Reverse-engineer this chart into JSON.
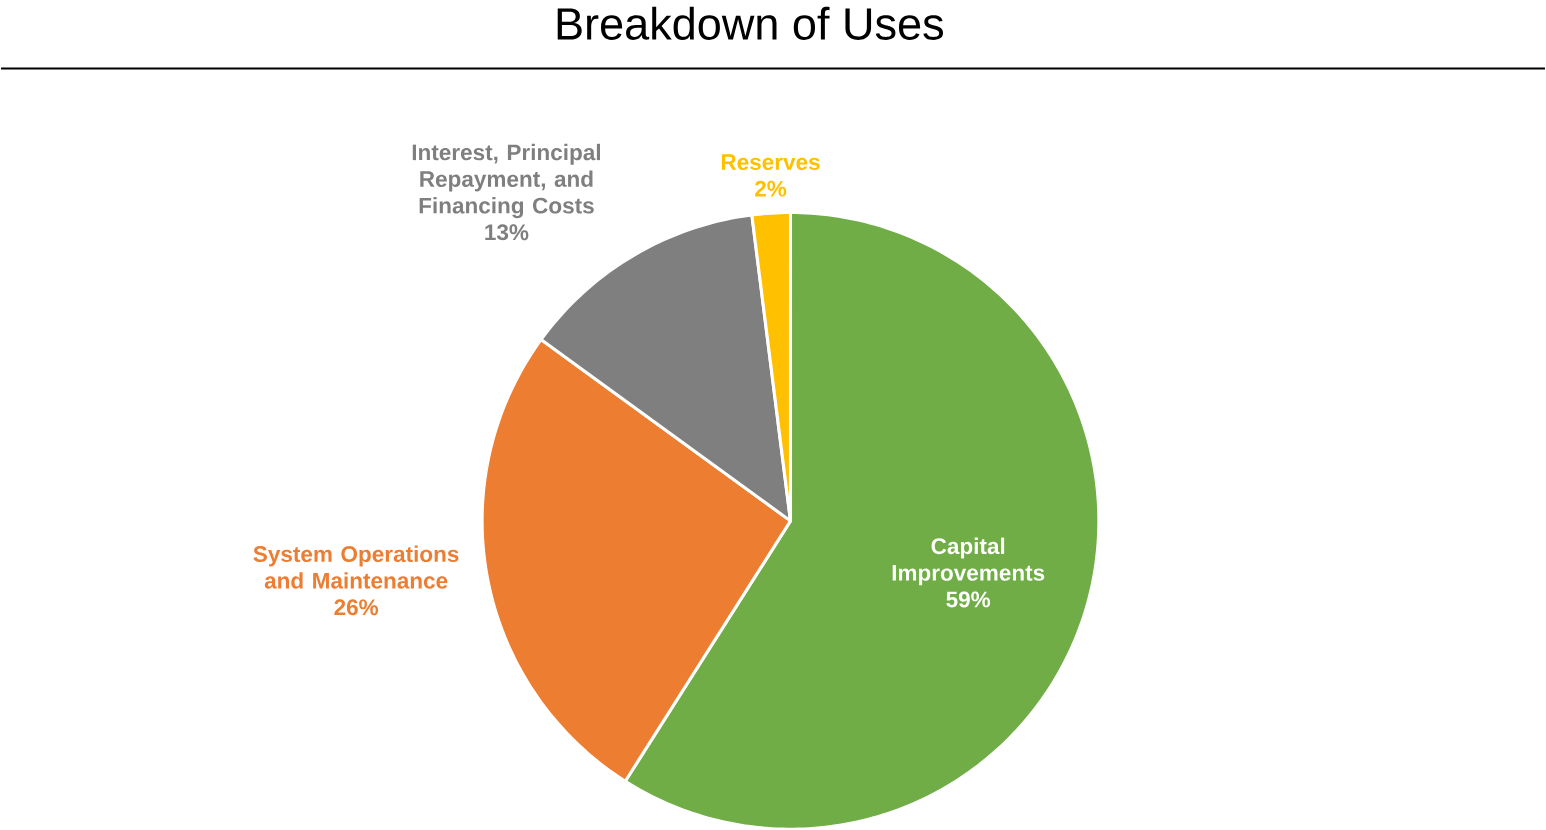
{
  "chart_data": {
    "type": "pie",
    "title": "Breakdown of Uses",
    "categories": [
      "Capital Improvements",
      "System Operations and Maintenance",
      "Interest, Principal Repayment, and Financing Costs",
      "Reserves"
    ],
    "values": [
      59,
      26,
      13,
      2
    ],
    "value_labels": [
      "59%",
      "26%",
      "13%",
      "2%"
    ],
    "colors": [
      "#70ad47",
      "#ed7d31",
      "#7f7f7f",
      "#ffc000"
    ]
  }
}
